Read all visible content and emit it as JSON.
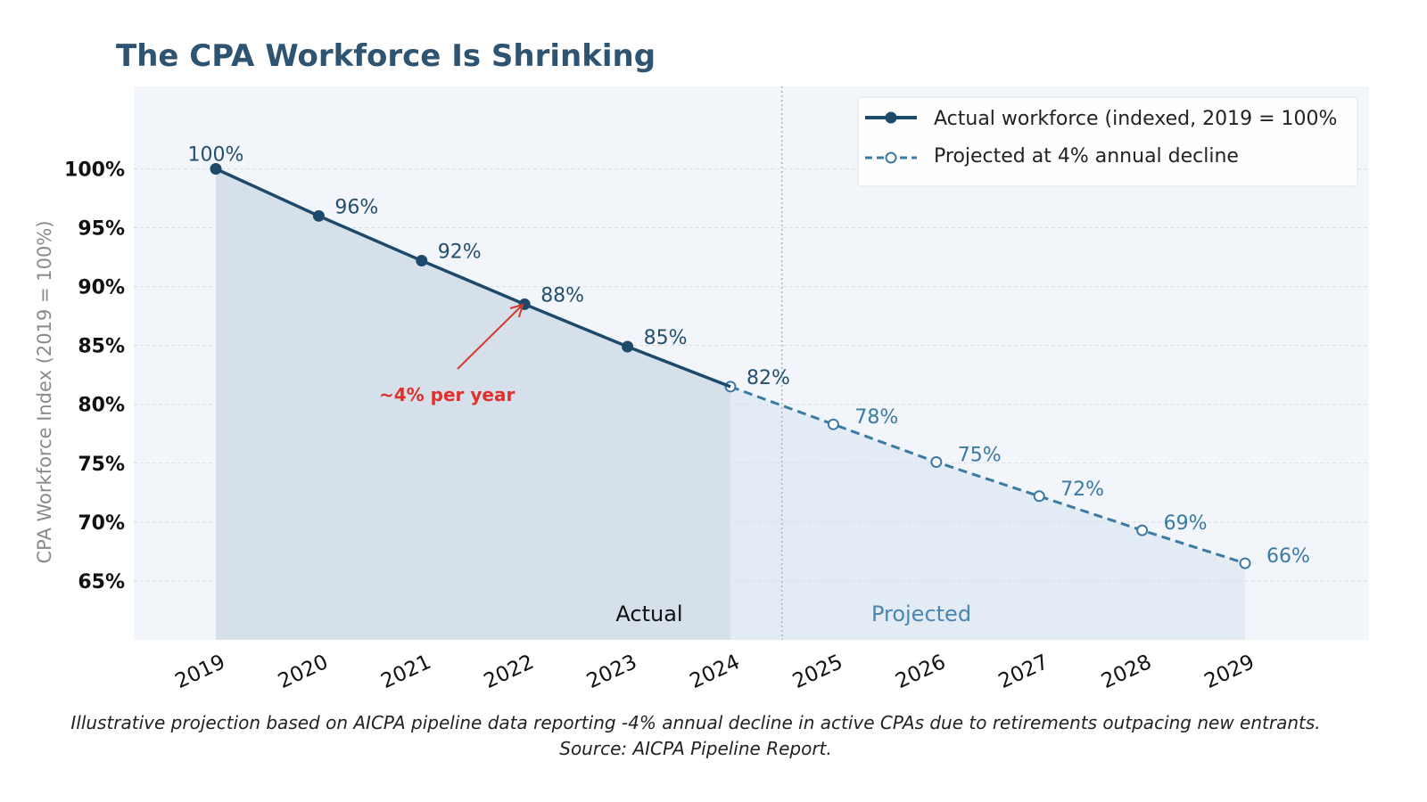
{
  "chart_data": {
    "type": "line",
    "title": "The CPA Workforce Is Shrinking",
    "xlabel": "",
    "ylabel": "CPA Workforce Index (2019 = 100%)",
    "ylim": [
      60,
      107
    ],
    "yticks": [
      100,
      95,
      90,
      85,
      80,
      75,
      70,
      65
    ],
    "ytick_labels": [
      "100%",
      "95%",
      "90%",
      "85%",
      "80%",
      "75%",
      "70%",
      "65%"
    ],
    "x": [
      "2019",
      "2020",
      "2021",
      "2022",
      "2023",
      "2024",
      "2025",
      "2026",
      "2027",
      "2028",
      "2029"
    ],
    "grid": "horizontal dashed",
    "legend_position": "top-right",
    "series": [
      {
        "name": "Actual workforce (indexed, 2019 = 100%",
        "style": "solid, filled markers",
        "color": "#1d4a6b",
        "x": [
          "2019",
          "2020",
          "2021",
          "2022",
          "2023",
          "2024"
        ],
        "values": [
          100,
          96,
          92.2,
          88.5,
          84.9,
          81.5
        ],
        "labels": [
          "100%",
          "96%",
          "92%",
          "88%",
          "85%",
          "82%"
        ]
      },
      {
        "name": "Projected at 4% annual decline",
        "style": "dashed, hollow markers",
        "color": "#3a7aa3",
        "x": [
          "2024",
          "2025",
          "2026",
          "2027",
          "2028",
          "2029"
        ],
        "values": [
          81.5,
          78.3,
          75.1,
          72.2,
          69.3,
          66.5
        ],
        "labels": [
          "",
          "78%",
          "75%",
          "72%",
          "69%",
          "66%"
        ]
      }
    ],
    "divider_between": [
      "2024",
      "2025"
    ],
    "region_labels": {
      "actual": "Actual",
      "projected": "Projected"
    },
    "annotation": {
      "text": "~4% per year",
      "points_to": "2022",
      "color": "#e0302c"
    },
    "caption": "Illustrative projection based on AICPA pipeline data reporting -4% annual decline in active CPAs due to retirements outpacing new entrants. Source: AICPA Pipeline Report."
  }
}
